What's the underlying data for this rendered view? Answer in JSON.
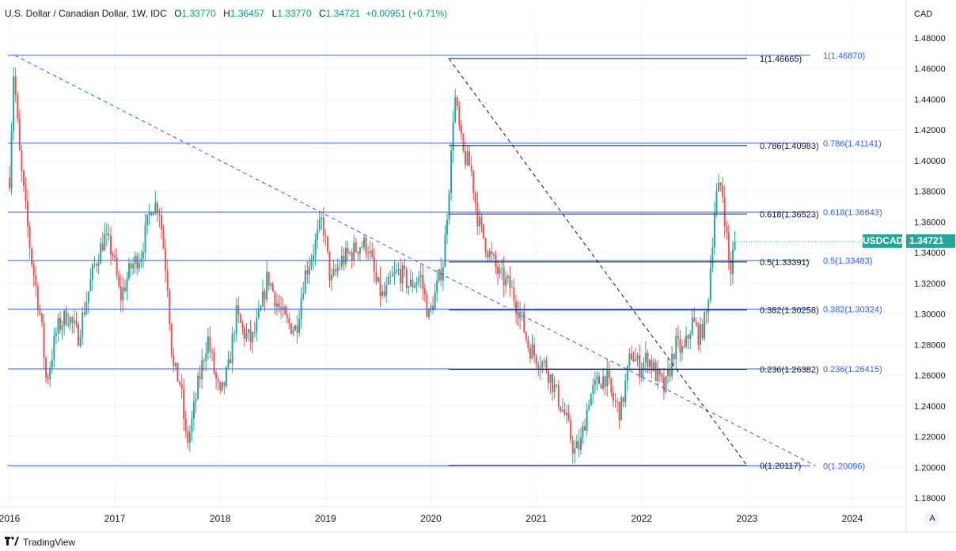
{
  "legend": {
    "title": "U.S. Dollar / Canadian Dollar, 1W, IDC",
    "open_label": "O",
    "open": "1.33770",
    "high_label": "H",
    "high": "1.36457",
    "low_label": "L",
    "low": "1.33770",
    "close_label": "C",
    "close": "1.34721",
    "change": "+0.00951 (+0.71%)"
  },
  "currency_label": "CAD",
  "current_price": {
    "symbol": "USDCAD",
    "value": "1.34721"
  },
  "auto_button": "A",
  "brand": "TradingView",
  "colors": {
    "up": "#26a69a",
    "down": "#ef5350",
    "fib_blue": "#2962ff",
    "fib_black": "#131722",
    "grid": "#f0f3fa"
  },
  "chart_data": {
    "type": "candlestick",
    "x_ticks": [
      "2016",
      "2017",
      "2018",
      "2019",
      "2020",
      "2021",
      "2022",
      "2023",
      "2024"
    ],
    "x_tick_years": [
      2016,
      2017,
      2018,
      2019,
      2020,
      2021,
      2022,
      2023,
      2024
    ],
    "y_ticks": [
      "1.48000",
      "1.46000",
      "1.44000",
      "1.42000",
      "1.40000",
      "1.38000",
      "1.36000",
      "1.34000",
      "1.32000",
      "1.30000",
      "1.28000",
      "1.26000",
      "1.24000",
      "1.22000",
      "1.20000",
      "1.18000"
    ],
    "ylim": [
      1.17,
      1.49
    ],
    "xlim": [
      2016.0,
      2024.5
    ],
    "price_points": [
      [
        2016.0,
        1.389
      ],
      [
        2016.04,
        1.46
      ],
      [
        2016.1,
        1.4
      ],
      [
        2016.2,
        1.34
      ],
      [
        2016.3,
        1.295
      ],
      [
        2016.35,
        1.255
      ],
      [
        2016.45,
        1.29
      ],
      [
        2016.55,
        1.3
      ],
      [
        2016.65,
        1.285
      ],
      [
        2016.8,
        1.33
      ],
      [
        2016.9,
        1.35
      ],
      [
        2016.98,
        1.34
      ],
      [
        2017.05,
        1.31
      ],
      [
        2017.15,
        1.33
      ],
      [
        2017.25,
        1.34
      ],
      [
        2017.35,
        1.372
      ],
      [
        2017.42,
        1.37
      ],
      [
        2017.5,
        1.32
      ],
      [
        2017.55,
        1.265
      ],
      [
        2017.62,
        1.255
      ],
      [
        2017.68,
        1.215
      ],
      [
        2017.72,
        1.225
      ],
      [
        2017.78,
        1.25
      ],
      [
        2017.88,
        1.285
      ],
      [
        2017.95,
        1.26
      ],
      [
        2018.0,
        1.245
      ],
      [
        2018.08,
        1.265
      ],
      [
        2018.15,
        1.3
      ],
      [
        2018.22,
        1.288
      ],
      [
        2018.3,
        1.282
      ],
      [
        2018.38,
        1.3
      ],
      [
        2018.45,
        1.325
      ],
      [
        2018.55,
        1.305
      ],
      [
        2018.62,
        1.295
      ],
      [
        2018.72,
        1.29
      ],
      [
        2018.8,
        1.325
      ],
      [
        2018.9,
        1.345
      ],
      [
        2018.97,
        1.362
      ],
      [
        2019.05,
        1.32
      ],
      [
        2019.15,
        1.335
      ],
      [
        2019.25,
        1.34
      ],
      [
        2019.32,
        1.345
      ],
      [
        2019.4,
        1.345
      ],
      [
        2019.48,
        1.32
      ],
      [
        2019.55,
        1.31
      ],
      [
        2019.62,
        1.322
      ],
      [
        2019.7,
        1.328
      ],
      [
        2019.8,
        1.318
      ],
      [
        2019.9,
        1.325
      ],
      [
        2019.98,
        1.298
      ],
      [
        2020.05,
        1.315
      ],
      [
        2020.12,
        1.335
      ],
      [
        2020.2,
        1.41
      ],
      [
        2020.22,
        1.445
      ],
      [
        2020.3,
        1.405
      ],
      [
        2020.38,
        1.395
      ],
      [
        2020.45,
        1.36
      ],
      [
        2020.55,
        1.34
      ],
      [
        2020.65,
        1.325
      ],
      [
        2020.75,
        1.318
      ],
      [
        2020.85,
        1.3
      ],
      [
        2020.92,
        1.28
      ],
      [
        2021.0,
        1.272
      ],
      [
        2021.1,
        1.265
      ],
      [
        2021.18,
        1.25
      ],
      [
        2021.28,
        1.232
      ],
      [
        2021.36,
        1.21
      ],
      [
        2021.42,
        1.215
      ],
      [
        2021.5,
        1.245
      ],
      [
        2021.58,
        1.255
      ],
      [
        2021.66,
        1.26
      ],
      [
        2021.72,
        1.245
      ],
      [
        2021.8,
        1.236
      ],
      [
        2021.9,
        1.275
      ],
      [
        2021.98,
        1.265
      ],
      [
        2022.06,
        1.272
      ],
      [
        2022.14,
        1.26
      ],
      [
        2022.22,
        1.25
      ],
      [
        2022.32,
        1.28
      ],
      [
        2022.4,
        1.275
      ],
      [
        2022.48,
        1.295
      ],
      [
        2022.55,
        1.285
      ],
      [
        2022.62,
        1.3
      ],
      [
        2022.7,
        1.375
      ],
      [
        2022.76,
        1.385
      ],
      [
        2022.8,
        1.355
      ],
      [
        2022.84,
        1.325
      ],
      [
        2022.88,
        1.3472
      ]
    ],
    "fib_blue": {
      "levels": [
        {
          "ratio_label": "1(1.46870)",
          "price": 1.4687
        },
        {
          "ratio_label": "0.786(1.41141)",
          "price": 1.41141
        },
        {
          "ratio_label": "0.618(1.36643)",
          "price": 1.36643
        },
        {
          "ratio_label": "0.5(1.33483)",
          "price": 1.33483
        },
        {
          "ratio_label": "0.382(1.30324)",
          "price": 1.30324
        },
        {
          "ratio_label": "0.236(1.26415)",
          "price": 1.26415
        },
        {
          "ratio_label": "0(1.20096)",
          "price": 1.20096
        }
      ],
      "x_start": 2016.0,
      "x_end": 2023.6
    },
    "fib_black": {
      "levels": [
        {
          "ratio_label": "1(1.46665)",
          "price": 1.46665
        },
        {
          "ratio_label": "0.786(1.40983)",
          "price": 1.40983
        },
        {
          "ratio_label": "0.618(1.36523)",
          "price": 1.36523
        },
        {
          "ratio_label": "0.5(1.33391)",
          "price": 1.33391
        },
        {
          "ratio_label": "0.382(1.30258)",
          "price": 1.30258
        },
        {
          "ratio_label": "0.236(1.26382)",
          "price": 1.26382
        },
        {
          "ratio_label": "0(1.20117)",
          "price": 1.20117
        }
      ],
      "x_start": 2020.17,
      "x_end": 2023.0
    },
    "trend_blue": {
      "from": [
        2016.05,
        1.4687
      ],
      "to": [
        2023.65,
        1.20096
      ]
    },
    "trend_black": {
      "from": [
        2020.17,
        1.46665
      ],
      "to": [
        2023.0,
        1.20117
      ]
    }
  }
}
